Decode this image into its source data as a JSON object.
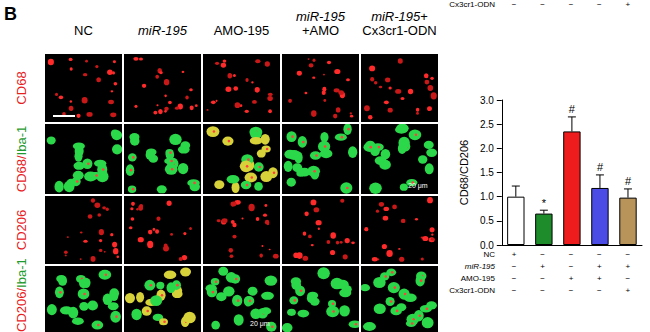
{
  "figure": {
    "panel_label": "B",
    "columns": [
      [
        [
          {
            "text": "NC"
          }
        ]
      ],
      [
        [
          {
            "text": "miR-195",
            "italic": true
          }
        ]
      ],
      [
        [
          {
            "text": "AMO-195"
          }
        ]
      ],
      [
        [
          {
            "text": "miR-195",
            "italic": true
          }
        ],
        [
          {
            "text": "+AMO"
          }
        ]
      ],
      [
        [
          {
            "text": "miR-195",
            "italic": true
          },
          {
            "text": "+"
          }
        ],
        [
          {
            "text": "Cx3cr1-ODN"
          }
        ]
      ]
    ],
    "rows": [
      [
        {
          "text": "CD68",
          "color": "#e8201c"
        }
      ],
      [
        {
          "text": "CD68/",
          "color": "#e8201c"
        },
        {
          "text": "Iba-1",
          "color": "#1f9a2e"
        }
      ],
      [
        {
          "text": "CD206",
          "color": "#e8201c"
        }
      ],
      [
        {
          "text": "CD206/",
          "color": "#e8201c"
        },
        {
          "text": "Iba-1",
          "color": "#1f9a2e"
        }
      ]
    ],
    "scale_labels": [
      {
        "row": 1,
        "col": 4,
        "text": "20 μm"
      },
      {
        "row": 3,
        "col": 2,
        "text": "20 μm"
      }
    ],
    "cropped_header": {
      "label": "Cx3cr1-ODN",
      "signs": [
        "−",
        "−",
        "−",
        "−",
        "+"
      ]
    }
  },
  "chart_data": {
    "type": "bar",
    "categories": [
      null,
      null,
      null,
      null,
      null
    ],
    "values": [
      1.0,
      0.65,
      2.35,
      1.18,
      0.98
    ],
    "errors": [
      0.22,
      0.07,
      0.3,
      0.27,
      0.18
    ],
    "colors": [
      "#ffffff",
      "#1e8c2a",
      "#ee1c1c",
      "#4b4be6",
      "#b8945a"
    ],
    "significance": [
      null,
      "*",
      "#",
      "#",
      "#"
    ],
    "y_label": "CD68/CD206",
    "ylim": [
      0,
      3
    ],
    "yticks": [
      {
        "value": 0,
        "label": "0.0"
      },
      {
        "value": 0.5,
        "label": "0.5"
      },
      {
        "value": 1,
        "label": "1.0"
      },
      {
        "value": 1.5,
        "label": "1.5"
      },
      {
        "value": 2,
        "label": "2.0"
      },
      {
        "value": 2.5,
        "label": "2.5"
      },
      {
        "value": 3,
        "label": "3.0"
      }
    ],
    "tick_labels": "y",
    "conditions": [
      {
        "name": "NC",
        "signs": [
          "+",
          "−",
          "−",
          "−",
          "−"
        ]
      },
      {
        "name": "miR-195",
        "italic": true,
        "signs": [
          "−",
          "+",
          "−",
          "+",
          "+"
        ]
      },
      {
        "name": "AMO-195",
        "signs": [
          "−",
          "−",
          "+",
          "+",
          "−"
        ]
      },
      {
        "name": "Cx3cr1-ODN",
        "signs": [
          "−",
          "−",
          "−",
          "−",
          "+"
        ]
      }
    ]
  }
}
